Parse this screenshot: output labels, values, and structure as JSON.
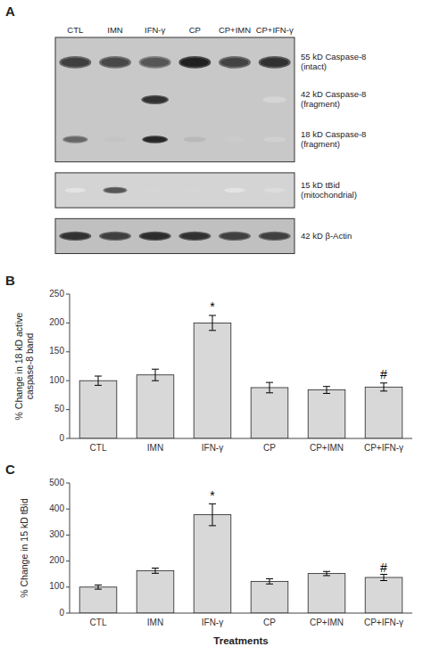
{
  "chart_data": [
    {
      "type": "blot",
      "title": "A",
      "categories": [
        "CTL",
        "IMN",
        "IFN-γ",
        "CP",
        "CP+IMN",
        "CP+IFN-γ"
      ],
      "series": [
        {
          "name": "55 kD Caspase-8\n(intact)",
          "color": "#c8c8c8",
          "values": [
            0.82,
            0.78,
            0.72,
            0.95,
            0.8,
            0.88
          ]
        },
        {
          "name": "42 kD Caspase-8\n(fragment)",
          "color": "#c8c8c8",
          "values": [
            0.0,
            0.0,
            0.88,
            0.0,
            0.0,
            0.18
          ]
        },
        {
          "name": "18 kD Caspase-8\n(fragment)",
          "color": "#c8c8c8",
          "values": [
            0.65,
            0.25,
            0.92,
            0.3,
            0.22,
            0.2
          ]
        },
        {
          "name": "15 kD tBid\n(mitochondrial)",
          "color": "#d4d4d4",
          "values": [
            0.12,
            0.72,
            0.18,
            0.18,
            0.12,
            0.15
          ]
        },
        {
          "name": "42 kD β-Actin",
          "color": "#c0c0c0",
          "values": [
            0.88,
            0.82,
            0.9,
            0.88,
            0.82,
            0.82
          ]
        }
      ]
    },
    {
      "type": "bar",
      "title": "B",
      "categories": [
        "CTL",
        "IMN",
        "IFN-γ",
        "CP",
        "CP+IMN",
        "CP+IFN-γ"
      ],
      "values": [
        100,
        110,
        200,
        88,
        84,
        89
      ],
      "errors": [
        8,
        10,
        13,
        9,
        6,
        7
      ],
      "ylabel": "% Change in 18 kD active\ncaspase-8 band",
      "ylim": [
        0,
        250
      ],
      "yticks": [
        0,
        50,
        100,
        150,
        200,
        250
      ],
      "color": "#d8d8d8",
      "annotations": [
        {
          "category": "IFN-γ",
          "text": "*",
          "y": 220
        },
        {
          "category": "CP+IFN-γ",
          "text": "#",
          "y": 103
        }
      ]
    },
    {
      "type": "bar",
      "title": "C",
      "categories": [
        "CTL",
        "IMN",
        "IFN-γ",
        "CP",
        "CP+IMN",
        "CP+IFN-γ"
      ],
      "values": [
        100,
        163,
        378,
        122,
        152,
        137
      ],
      "errors": [
        8,
        10,
        42,
        10,
        8,
        12
      ],
      "ylabel": "% Change in 15 kD tBid",
      "xlabel": "Treatments",
      "ylim": [
        0,
        500
      ],
      "yticks": [
        0,
        100,
        200,
        300,
        400,
        500
      ],
      "color": "#d8d8d8",
      "annotations": [
        {
          "category": "IFN-γ",
          "text": "*",
          "y": 435
        },
        {
          "category": "CP+IFN-γ",
          "text": "#",
          "y": 158
        }
      ]
    }
  ]
}
